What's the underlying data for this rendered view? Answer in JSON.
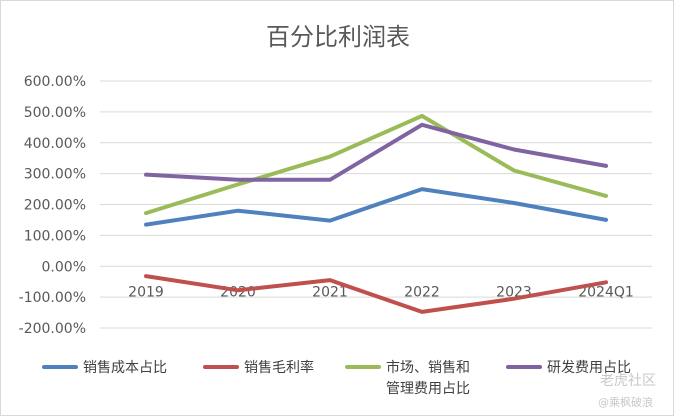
{
  "chart_data": {
    "type": "line",
    "title": "百分比利润表",
    "categories": [
      "2019",
      "2020",
      "2021",
      "2022",
      "2023",
      "2024Q1"
    ],
    "y_ticks": [
      "600.00%",
      "500.00%",
      "400.00%",
      "300.00%",
      "200.00%",
      "100.00%",
      "0.00%",
      "-100.00%",
      "-200.00%"
    ],
    "ylim": [
      -200,
      600
    ],
    "grid": true,
    "legend_position": "bottom",
    "series": [
      {
        "name": "销售成本占比",
        "color": "#4f81bd",
        "values": [
          135,
          180,
          148,
          250,
          205,
          150
        ]
      },
      {
        "name": "销售毛利率",
        "color": "#c0504d",
        "values": [
          -32,
          -78,
          -45,
          -148,
          -105,
          -52
        ]
      },
      {
        "name": "市场、销售和管理费用占比",
        "color": "#9bbb59",
        "values": [
          172,
          265,
          355,
          487,
          310,
          228
        ]
      },
      {
        "name": "研发费用占比",
        "color": "#8064a2",
        "values": [
          297,
          280,
          280,
          458,
          378,
          325
        ]
      }
    ],
    "legend_lines": [
      [
        "销售成本占比"
      ],
      [
        "销售毛利率"
      ],
      [
        "市场、销售和",
        "管理费用占比"
      ],
      [
        "研发费用占比"
      ]
    ]
  },
  "watermark": {
    "logo_text": "老虎社区",
    "sub_text": "@乘枫破浪"
  }
}
